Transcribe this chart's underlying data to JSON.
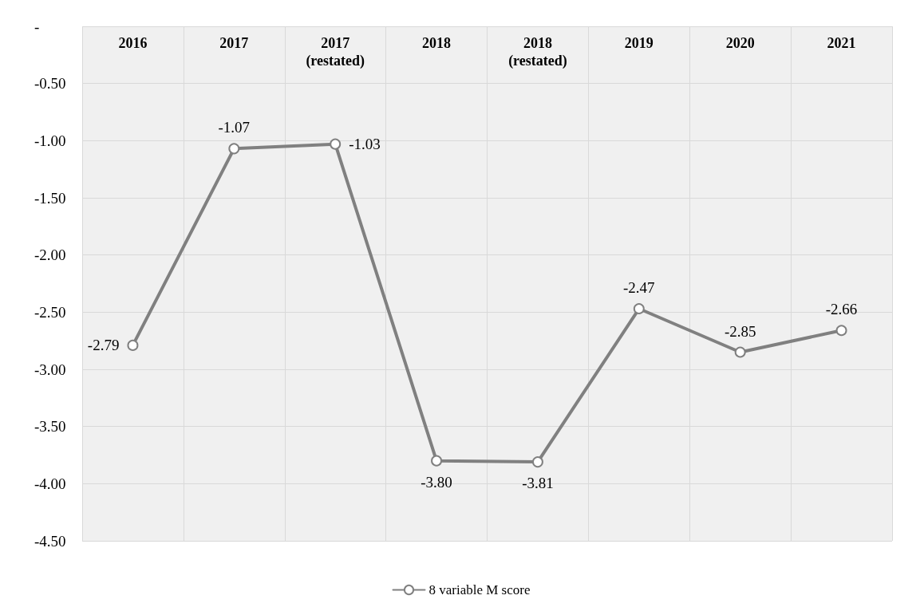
{
  "chart_data": {
    "type": "line",
    "categories": [
      "2016",
      "2017",
      "2017\n(restated)",
      "2018",
      "2018\n(restated)",
      "2019",
      "2020",
      "2021"
    ],
    "series": [
      {
        "name": "8 variable M score",
        "color": "#808080",
        "values": [
          -2.79,
          -1.07,
          -1.03,
          -3.8,
          -3.81,
          -2.47,
          -2.85,
          -2.66
        ],
        "value_labels": [
          "-2.79",
          "-1.07",
          "-1.03",
          "-3.80",
          "-3.81",
          "-2.47",
          "-2.85",
          "-2.66"
        ]
      }
    ],
    "ylim": [
      -4.5,
      0
    ],
    "yticks": [
      {
        "value": 0,
        "label": "-"
      },
      {
        "value": -0.5,
        "label": "-0.50"
      },
      {
        "value": -1,
        "label": "-1.00"
      },
      {
        "value": -1.5,
        "label": "-1.50"
      },
      {
        "value": -2,
        "label": "-2.00"
      },
      {
        "value": -2.5,
        "label": "-2.50"
      },
      {
        "value": -3,
        "label": "-3.00"
      },
      {
        "value": -3.5,
        "label": "-3.50"
      },
      {
        "value": -4,
        "label": "-4.00"
      },
      {
        "value": -4.5,
        "label": "-4.50"
      }
    ],
    "grid": true,
    "legend": "bottom",
    "marker": "circle",
    "line_style": "solid"
  }
}
